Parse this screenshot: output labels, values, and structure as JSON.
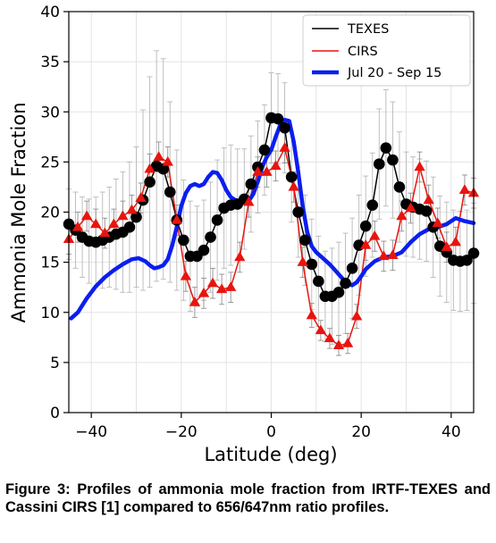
{
  "chart_data": {
    "type": "line",
    "xlabel": "Latitude (deg)",
    "ylabel": "Ammonia Mole Fraction",
    "xlim": [
      -45,
      45
    ],
    "ylim": [
      0,
      40
    ],
    "xticks": [
      -40,
      -20,
      0,
      20,
      40
    ],
    "yticks": [
      0,
      5,
      10,
      15,
      20,
      25,
      30,
      35,
      40
    ],
    "grid": true,
    "legend_position": "top-right",
    "series": [
      {
        "name": "TEXES",
        "color": "#000000",
        "marker": "circle",
        "x": [
          -45,
          -43.5,
          -42,
          -40.5,
          -39,
          -37.5,
          -36,
          -34.5,
          -33,
          -31.5,
          -30,
          -28.5,
          -27,
          -25.5,
          -24,
          -22.5,
          -21,
          -19.5,
          -18,
          -16.5,
          -15,
          -13.5,
          -12,
          -10.5,
          -9,
          -7.5,
          -6,
          -4.5,
          -3,
          -1.5,
          0,
          1.5,
          3,
          4.5,
          6,
          7.5,
          9,
          10.5,
          12,
          13.5,
          15,
          16.5,
          18,
          19.5,
          21,
          22.5,
          24,
          25.5,
          27,
          28.5,
          30,
          31.5,
          33,
          34.5,
          36,
          37.5,
          39,
          40.5,
          42,
          43.5,
          45
        ],
        "y": [
          18.8,
          18.2,
          17.5,
          17.1,
          17.0,
          17.2,
          17.5,
          17.8,
          18.0,
          18.5,
          19.5,
          21.2,
          23.0,
          24.6,
          24.3,
          22.0,
          19.2,
          17.2,
          15.6,
          15.6,
          16.2,
          17.5,
          19.2,
          20.4,
          20.7,
          20.8,
          21.3,
          22.8,
          24.5,
          26.2,
          29.4,
          29.3,
          28.4,
          23.5,
          20.0,
          17.2,
          14.8,
          13.1,
          11.6,
          11.6,
          12.0,
          12.9,
          14.4,
          16.7,
          18.6,
          20.7,
          24.8,
          26.4,
          25.2,
          22.5,
          20.8,
          20.5,
          20.3,
          20.1,
          18.5,
          16.6,
          16.0,
          15.2,
          15.1,
          15.2,
          15.9
        ],
        "yerr": [
          3.5,
          3.8,
          4.0,
          4.2,
          4.5,
          4.8,
          5.0,
          5.5,
          6.0,
          6.5,
          7.0,
          9.0,
          10.5,
          11.5,
          11.0,
          9.0,
          7.0,
          6.0,
          5.5,
          5.0,
          5.0,
          5.5,
          6.0,
          6.0,
          6.0,
          5.5,
          5.0,
          4.8,
          4.6,
          4.5,
          4.5,
          4.5,
          4.5,
          4.5,
          4.5,
          4.5,
          4.5,
          4.5,
          4.5,
          4.8,
          5.0,
          5.0,
          5.0,
          5.0,
          5.0,
          5.2,
          5.5,
          5.8,
          5.8,
          5.5,
          5.2,
          5.0,
          5.0,
          5.0,
          5.0,
          5.0,
          5.0,
          5.0,
          5.0,
          5.0,
          5.0
        ]
      },
      {
        "name": "CIRS",
        "color": "#e8140f",
        "marker": "triangle",
        "x": [
          -45,
          -43,
          -41,
          -39,
          -37,
          -35,
          -33,
          -31,
          -29,
          -27,
          -25,
          -23,
          -21,
          -19,
          -17,
          -15,
          -13,
          -11,
          -9,
          -7,
          -5,
          -3,
          -1,
          1,
          3,
          5,
          7,
          9,
          11,
          13,
          15,
          17,
          19,
          21,
          23,
          25,
          27,
          29,
          31,
          33,
          35,
          37,
          39,
          41,
          43,
          45
        ],
        "y": [
          17.3,
          18.5,
          19.6,
          18.8,
          17.9,
          18.8,
          19.6,
          20.2,
          21.4,
          24.3,
          25.5,
          25.0,
          19.2,
          13.6,
          11.0,
          11.9,
          12.9,
          12.3,
          12.5,
          15.5,
          21.0,
          24.0,
          24.0,
          24.6,
          26.4,
          22.5,
          15.0,
          9.7,
          8.2,
          7.4,
          6.7,
          6.9,
          9.6,
          16.7,
          17.6,
          15.6,
          15.7,
          19.6,
          20.4,
          24.5,
          21.2,
          18.9,
          16.5,
          17.0,
          22.2,
          21.9
        ],
        "yerr": [
          1.5,
          1.5,
          1.5,
          1.5,
          1.5,
          1.5,
          1.5,
          1.5,
          1.5,
          1.5,
          1.5,
          1.5,
          1.5,
          1.5,
          1.5,
          1.5,
          1.5,
          1.5,
          1.5,
          1.5,
          1.5,
          1.5,
          1.5,
          1.5,
          1.5,
          1.5,
          1.5,
          1.2,
          1.0,
          1.0,
          1.0,
          1.0,
          1.2,
          1.5,
          1.5,
          1.5,
          1.5,
          1.5,
          1.5,
          1.5,
          1.5,
          1.5,
          1.5,
          1.5,
          1.5,
          1.5
        ]
      },
      {
        "name": "Jul 20 - Sep 15",
        "color": "#0a1ef0",
        "marker": "none",
        "x": [
          -44.5,
          -43,
          -41,
          -39,
          -37,
          -35,
          -33,
          -31,
          -29.5,
          -28,
          -27,
          -26,
          -25,
          -24,
          -23,
          -22,
          -21,
          -20,
          -19,
          -18,
          -17,
          -16,
          -15,
          -14,
          -13,
          -12,
          -11,
          -10,
          -9,
          -8,
          -7,
          -6,
          -5,
          -4,
          -3,
          -2,
          -1,
          0,
          1,
          2,
          3,
          4,
          5,
          6,
          7,
          8,
          9,
          10,
          11,
          12,
          13,
          14,
          15,
          16,
          17,
          18,
          19,
          20,
          21,
          23,
          25,
          27,
          29,
          31,
          33,
          35,
          37,
          39,
          41,
          43,
          45
        ],
        "y": [
          9.4,
          10.0,
          11.4,
          12.6,
          13.5,
          14.2,
          14.8,
          15.3,
          15.4,
          15.1,
          14.7,
          14.4,
          14.5,
          14.7,
          15.3,
          16.7,
          18.5,
          20.6,
          21.9,
          22.6,
          22.8,
          22.6,
          22.8,
          23.5,
          24.0,
          23.9,
          23.2,
          22.2,
          21.5,
          21.2,
          21.1,
          21.1,
          21.1,
          21.8,
          23.0,
          24.5,
          25.5,
          26.2,
          27.5,
          28.7,
          29.2,
          29.1,
          27.0,
          24.0,
          20.6,
          18.0,
          16.6,
          16.0,
          15.6,
          15.2,
          14.8,
          14.3,
          13.8,
          13.3,
          12.9,
          12.7,
          13.0,
          13.6,
          14.3,
          15.1,
          15.5,
          15.6,
          16.0,
          17.0,
          17.8,
          18.3,
          18.5,
          18.8,
          19.4,
          19.1,
          18.9
        ]
      }
    ]
  },
  "caption": "Figure 3: Profiles of ammonia mole fraction from IRTF-TEXES and Cassini CIRS [1] compared to 656/647nm ratio profiles."
}
